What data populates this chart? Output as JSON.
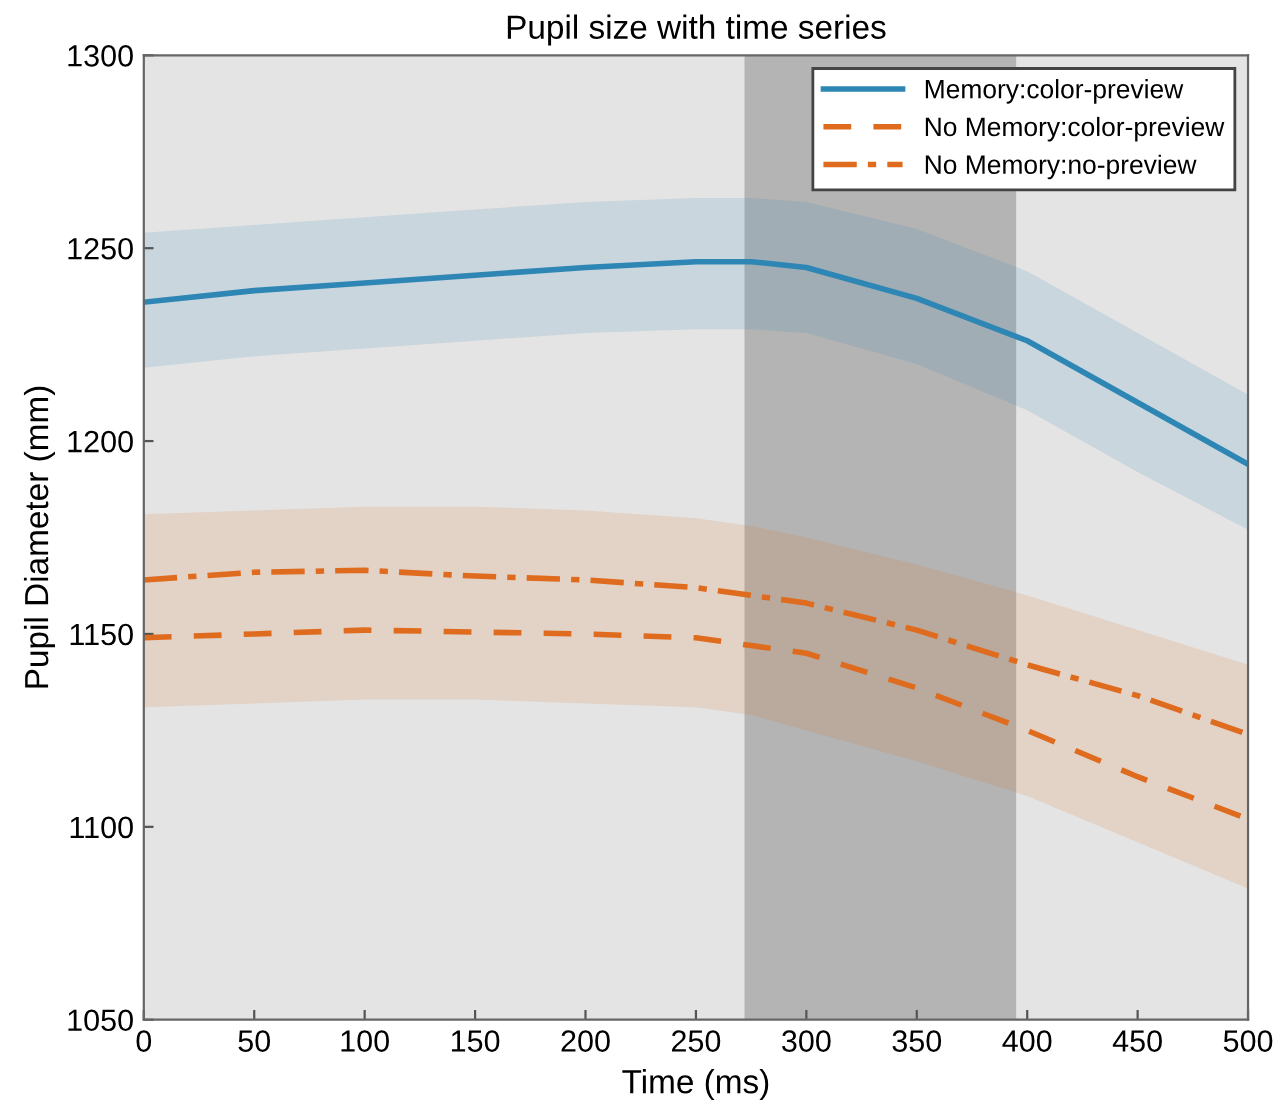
{
  "chart_data": {
    "type": "line",
    "title": "Pupil size with time series",
    "xlabel": "Time (ms)",
    "ylabel": "Pupil Diameter (mm)",
    "xlim": [
      0,
      500
    ],
    "xticks": [
      0,
      50,
      100,
      150,
      200,
      250,
      300,
      350,
      400,
      450,
      500
    ],
    "ylim": [
      1050,
      1300
    ],
    "yticks": [
      1050,
      1100,
      1150,
      1200,
      1250,
      1300
    ],
    "grid": false,
    "legend": "top right",
    "marker": "none",
    "bands": [
      {
        "axis": "x",
        "from": 272,
        "to": 395,
        "color": "#b4b4b4"
      }
    ],
    "series": [
      {
        "name": "Memory:color-preview",
        "color": "#2e86b5",
        "line_style": "solid",
        "x": [
          0,
          50,
          100,
          150,
          200,
          250,
          275,
          300,
          350,
          400,
          450,
          500
        ],
        "values": [
          1236,
          1239,
          1241,
          1243,
          1245,
          1246.5,
          1246.5,
          1245,
          1237,
          1226,
          1210,
          1194
        ],
        "upper": [
          1254,
          1256,
          1258,
          1260,
          1262,
          1263,
          1263,
          1262,
          1255,
          1244,
          1228,
          1212
        ],
        "lower": [
          1219,
          1222,
          1224,
          1226,
          1228,
          1229,
          1229,
          1228,
          1220,
          1208,
          1192,
          1177
        ]
      },
      {
        "name": "No Memory:color-preview",
        "color": "#df6b1e",
        "line_style": "dashed",
        "x": [
          0,
          50,
          100,
          150,
          200,
          250,
          275,
          300,
          350,
          400,
          450,
          500
        ],
        "values": [
          1149,
          1150,
          1151,
          1150.5,
          1150,
          1149,
          1147,
          1145,
          1136,
          1125,
          1113,
          1102
        ],
        "upper": [
          1181,
          1182,
          1183,
          1183,
          1182,
          1180,
          1178,
          1175,
          1168,
          1160,
          1151,
          1142
        ],
        "lower": [
          1131,
          1132,
          1133,
          1133,
          1132,
          1131,
          1129,
          1125,
          1117,
          1108,
          1096,
          1084
        ]
      },
      {
        "name": "No Memory:no-preview",
        "color": "#df6b1e",
        "line_style": "dashdot",
        "x": [
          0,
          50,
          100,
          150,
          200,
          250,
          275,
          300,
          350,
          400,
          450,
          500
        ],
        "values": [
          1164,
          1166,
          1166.5,
          1165,
          1164,
          1162,
          1160,
          1158,
          1151,
          1142,
          1134,
          1124
        ]
      }
    ]
  }
}
